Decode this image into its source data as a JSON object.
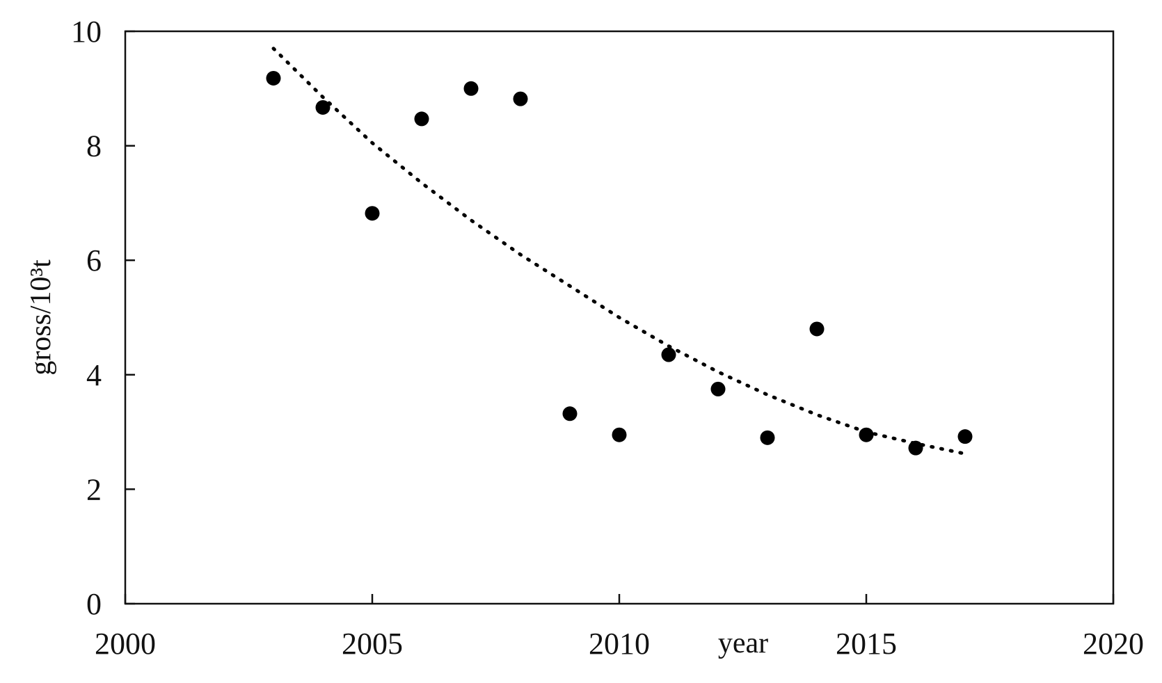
{
  "chart_data": {
    "type": "scatter",
    "title": "",
    "xlabel": "year",
    "ylabel": "gross/10³t",
    "xlim": [
      2000,
      2020
    ],
    "ylim": [
      0,
      10
    ],
    "xticks": [
      2000,
      2005,
      2010,
      2015,
      2020
    ],
    "yticks": [
      0,
      2,
      4,
      6,
      8,
      10
    ],
    "grid": false,
    "legend": "none",
    "series": [
      {
        "marker": "circle",
        "color": "#000000",
        "x": [
          2003,
          2004,
          2005,
          2006,
          2007,
          2008,
          2009,
          2010,
          2011,
          2012,
          2013,
          2014,
          2015,
          2016,
          2017
        ],
        "y": [
          9.18,
          8.67,
          6.82,
          8.47,
          9.0,
          8.82,
          3.32,
          2.95,
          4.35,
          3.75,
          2.9,
          4.8,
          2.95,
          2.72,
          2.92
        ]
      }
    ],
    "trendline": {
      "style": "dotted",
      "color": "#000000",
      "x": [
        2003,
        2004,
        2005,
        2006,
        2007,
        2008,
        2009,
        2010,
        2011,
        2012,
        2013,
        2014,
        2015,
        2016,
        2017
      ],
      "y": [
        9.7,
        8.85,
        8.05,
        7.35,
        6.7,
        6.1,
        5.55,
        5.0,
        4.5,
        4.05,
        3.65,
        3.3,
        3.0,
        2.8,
        2.62
      ]
    }
  }
}
